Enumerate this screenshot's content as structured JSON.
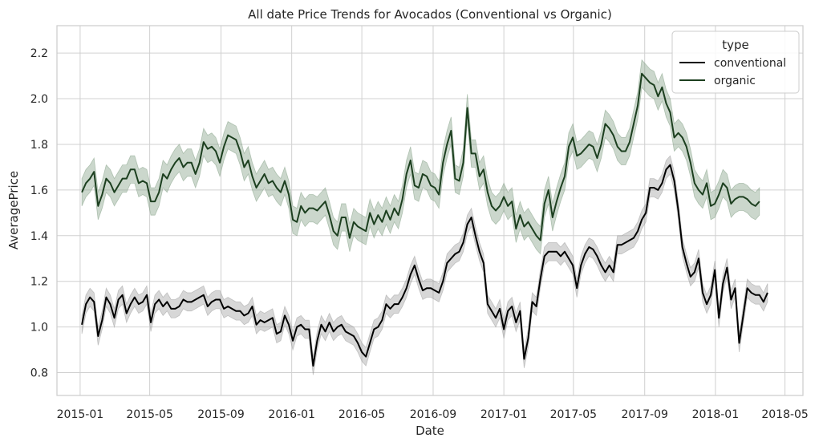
{
  "chart_data": {
    "type": "line",
    "title": "All date Price Trends for Avocados (Conventional vs Organic)",
    "xlabel": "Date",
    "ylabel": "AveragePrice",
    "x_tick_labels": [
      "2015-01",
      "2015-05",
      "2015-09",
      "2016-01",
      "2016-05",
      "2016-09",
      "2017-01",
      "2017-05",
      "2017-09",
      "2018-01",
      "2018-05"
    ],
    "x_ticks": [
      "2015-01-01",
      "2015-05-01",
      "2015-09-01",
      "2016-01-01",
      "2016-05-01",
      "2016-09-01",
      "2017-01-01",
      "2017-05-01",
      "2017-09-01",
      "2018-01-01",
      "2018-05-01"
    ],
    "y_ticks": [
      0.8,
      1.0,
      1.2,
      1.4,
      1.6,
      1.8,
      2.0,
      2.2
    ],
    "y_tick_labels": [
      "0.8",
      "1.0",
      "1.2",
      "1.4",
      "1.6",
      "1.8",
      "2.0",
      "2.2"
    ],
    "xlim": [
      "2014-11-22",
      "2018-06-01"
    ],
    "ylim": [
      0.7,
      2.32
    ],
    "grid": true,
    "legend_position": "top-right",
    "legend_title": "type",
    "x_start": "2015-01-04",
    "x_step_days": 7,
    "series": [
      {
        "name": "conventional",
        "color": "#000000",
        "band_color": "#9a9a9a",
        "band_half_width": 0.04,
        "values": [
          1.01,
          1.1,
          1.13,
          1.11,
          0.96,
          1.03,
          1.13,
          1.1,
          1.04,
          1.12,
          1.14,
          1.06,
          1.1,
          1.13,
          1.1,
          1.11,
          1.14,
          1.02,
          1.1,
          1.12,
          1.09,
          1.11,
          1.08,
          1.08,
          1.09,
          1.12,
          1.11,
          1.11,
          1.12,
          1.13,
          1.14,
          1.09,
          1.11,
          1.12,
          1.12,
          1.08,
          1.09,
          1.08,
          1.07,
          1.07,
          1.05,
          1.06,
          1.09,
          1.01,
          1.03,
          1.02,
          1.03,
          1.04,
          0.97,
          0.98,
          1.05,
          1.01,
          0.94,
          1.0,
          1.01,
          0.99,
          0.99,
          0.83,
          0.94,
          1.01,
          0.98,
          1.02,
          0.98,
          1.0,
          1.01,
          0.98,
          0.97,
          0.96,
          0.93,
          0.89,
          0.87,
          0.93,
          0.99,
          1.0,
          1.03,
          1.1,
          1.08,
          1.1,
          1.1,
          1.13,
          1.17,
          1.23,
          1.27,
          1.21,
          1.16,
          1.17,
          1.17,
          1.16,
          1.15,
          1.2,
          1.28,
          1.3,
          1.32,
          1.33,
          1.37,
          1.45,
          1.48,
          1.4,
          1.33,
          1.28,
          1.1,
          1.07,
          1.04,
          1.08,
          0.99,
          1.07,
          1.09,
          1.02,
          1.07,
          0.86,
          0.95,
          1.11,
          1.09,
          1.21,
          1.31,
          1.33,
          1.33,
          1.33,
          1.31,
          1.33,
          1.3,
          1.27,
          1.17,
          1.27,
          1.32,
          1.35,
          1.34,
          1.31,
          1.27,
          1.24,
          1.27,
          1.24,
          1.36,
          1.36,
          1.37,
          1.38,
          1.39,
          1.42,
          1.47,
          1.5,
          1.61,
          1.61,
          1.6,
          1.63,
          1.69,
          1.71,
          1.64,
          1.51,
          1.35,
          1.28,
          1.22,
          1.24,
          1.3,
          1.15,
          1.1,
          1.14,
          1.25,
          1.04,
          1.19,
          1.26,
          1.12,
          1.17,
          0.93,
          1.05,
          1.17,
          1.15,
          1.14,
          1.14,
          1.11,
          1.15
        ]
      },
      {
        "name": "organic",
        "color": "#1c3f1f",
        "band_color": "#7d9c80",
        "band_half_width": 0.06,
        "values": [
          1.59,
          1.63,
          1.65,
          1.68,
          1.53,
          1.58,
          1.65,
          1.63,
          1.59,
          1.62,
          1.65,
          1.65,
          1.69,
          1.69,
          1.63,
          1.64,
          1.63,
          1.55,
          1.55,
          1.59,
          1.67,
          1.65,
          1.69,
          1.72,
          1.74,
          1.7,
          1.72,
          1.72,
          1.67,
          1.72,
          1.81,
          1.78,
          1.79,
          1.77,
          1.72,
          1.79,
          1.84,
          1.83,
          1.82,
          1.77,
          1.7,
          1.73,
          1.66,
          1.61,
          1.64,
          1.67,
          1.63,
          1.64,
          1.61,
          1.59,
          1.64,
          1.58,
          1.47,
          1.46,
          1.53,
          1.5,
          1.52,
          1.52,
          1.51,
          1.53,
          1.55,
          1.49,
          1.42,
          1.4,
          1.48,
          1.48,
          1.39,
          1.46,
          1.44,
          1.43,
          1.42,
          1.5,
          1.45,
          1.49,
          1.46,
          1.51,
          1.47,
          1.52,
          1.49,
          1.56,
          1.67,
          1.73,
          1.62,
          1.61,
          1.67,
          1.66,
          1.62,
          1.61,
          1.58,
          1.72,
          1.8,
          1.86,
          1.65,
          1.64,
          1.72,
          1.96,
          1.76,
          1.76,
          1.66,
          1.69,
          1.59,
          1.53,
          1.51,
          1.53,
          1.57,
          1.53,
          1.55,
          1.43,
          1.49,
          1.44,
          1.46,
          1.43,
          1.4,
          1.38,
          1.54,
          1.6,
          1.48,
          1.55,
          1.61,
          1.66,
          1.79,
          1.83,
          1.75,
          1.76,
          1.78,
          1.8,
          1.79,
          1.74,
          1.8,
          1.89,
          1.87,
          1.84,
          1.79,
          1.77,
          1.77,
          1.81,
          1.89,
          1.97,
          2.11,
          2.09,
          2.07,
          2.06,
          2.01,
          2.05,
          1.98,
          1.94,
          1.83,
          1.85,
          1.83,
          1.79,
          1.72,
          1.63,
          1.6,
          1.58,
          1.63,
          1.53,
          1.54,
          1.58,
          1.63,
          1.61,
          1.54,
          1.56,
          1.57,
          1.57,
          1.56,
          1.54,
          1.53,
          1.55
        ]
      }
    ]
  }
}
